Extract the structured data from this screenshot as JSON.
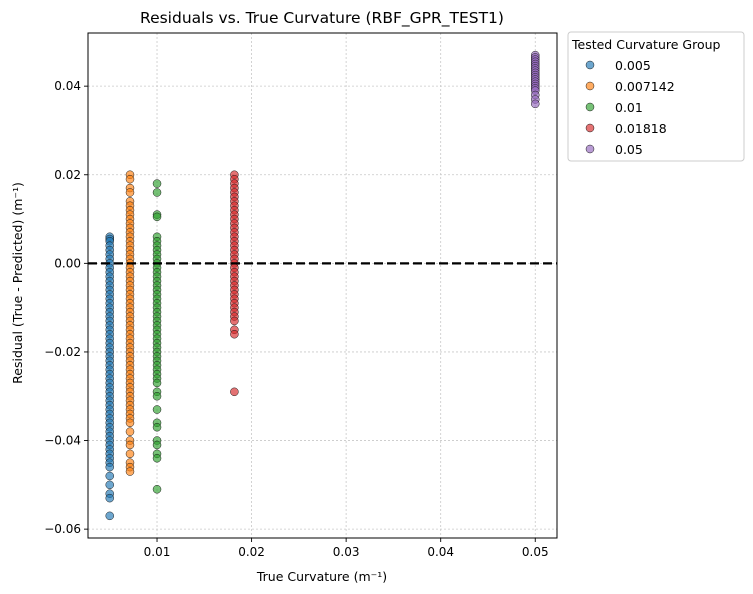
{
  "chart_data": {
    "type": "scatter",
    "title": "Residuals vs. True Curvature (RBF_GPR_TEST1)",
    "xlabel": "True Curvature (m⁻¹)",
    "ylabel": "Residual (True - Predicted) (m⁻¹)",
    "xlim": [
      0.0027,
      0.0523
    ],
    "ylim": [
      -0.062,
      0.052
    ],
    "x_ticks": [
      0.01,
      0.02,
      0.03,
      0.04,
      0.05
    ],
    "x_tick_labels": [
      "0.01",
      "0.02",
      "0.03",
      "0.04",
      "0.05"
    ],
    "y_ticks": [
      -0.06,
      -0.04,
      -0.02,
      0.0,
      0.02,
      0.04
    ],
    "y_tick_labels": [
      "−0.06",
      "−0.04",
      "−0.02",
      "0.00",
      "0.02",
      "0.04"
    ],
    "grid": true,
    "reference_line": {
      "y": 0.0,
      "style": "dashed",
      "color": "#000000"
    },
    "legend": {
      "title": "Tested Curvature Group",
      "placement": "outside-top-right",
      "entries": [
        "0.005",
        "0.007142",
        "0.01",
        "0.01818",
        "0.05"
      ]
    },
    "series": [
      {
        "name": "0.005",
        "color": "#1f77b4",
        "x": 0.005,
        "y": [
          0.006,
          0.0055,
          0.005,
          0.004,
          0.003,
          0.002,
          0.001,
          0.0,
          -0.001,
          -0.002,
          -0.003,
          -0.004,
          -0.005,
          -0.006,
          -0.007,
          -0.008,
          -0.009,
          -0.01,
          -0.011,
          -0.012,
          -0.013,
          -0.014,
          -0.015,
          -0.016,
          -0.017,
          -0.018,
          -0.019,
          -0.02,
          -0.021,
          -0.022,
          -0.023,
          -0.024,
          -0.025,
          -0.026,
          -0.027,
          -0.028,
          -0.029,
          -0.03,
          -0.031,
          -0.032,
          -0.033,
          -0.034,
          -0.035,
          -0.036,
          -0.037,
          -0.038,
          -0.039,
          -0.04,
          -0.041,
          -0.042,
          -0.043,
          -0.044,
          -0.045,
          -0.046,
          -0.048,
          -0.05,
          -0.052,
          -0.053,
          -0.057
        ]
      },
      {
        "name": "0.007142",
        "color": "#ff7f0e",
        "x": 0.007142,
        "y": [
          0.02,
          0.019,
          0.017,
          0.016,
          0.014,
          0.013,
          0.012,
          0.011,
          0.01,
          0.009,
          0.008,
          0.007,
          0.006,
          0.005,
          0.004,
          0.003,
          0.002,
          0.001,
          0.0,
          -0.001,
          -0.002,
          -0.003,
          -0.004,
          -0.005,
          -0.006,
          -0.007,
          -0.008,
          -0.009,
          -0.01,
          -0.011,
          -0.012,
          -0.013,
          -0.014,
          -0.015,
          -0.016,
          -0.017,
          -0.018,
          -0.019,
          -0.02,
          -0.021,
          -0.022,
          -0.023,
          -0.024,
          -0.025,
          -0.026,
          -0.027,
          -0.028,
          -0.029,
          -0.03,
          -0.031,
          -0.032,
          -0.033,
          -0.034,
          -0.035,
          -0.036,
          -0.038,
          -0.04,
          -0.041,
          -0.043,
          -0.045,
          -0.046,
          -0.047
        ]
      },
      {
        "name": "0.01",
        "color": "#2ca02c",
        "x": 0.01,
        "y": [
          0.018,
          0.016,
          0.011,
          0.0105,
          0.006,
          0.005,
          0.004,
          0.003,
          0.002,
          0.001,
          0.0,
          -0.001,
          -0.002,
          -0.003,
          -0.004,
          -0.005,
          -0.006,
          -0.007,
          -0.008,
          -0.009,
          -0.01,
          -0.011,
          -0.012,
          -0.013,
          -0.014,
          -0.015,
          -0.016,
          -0.017,
          -0.018,
          -0.019,
          -0.02,
          -0.021,
          -0.022,
          -0.023,
          -0.024,
          -0.025,
          -0.026,
          -0.027,
          -0.029,
          -0.03,
          -0.033,
          -0.036,
          -0.037,
          -0.04,
          -0.041,
          -0.043,
          -0.044,
          -0.051
        ]
      },
      {
        "name": "0.01818",
        "color": "#d62728",
        "x": 0.01818,
        "y": [
          0.02,
          0.019,
          0.018,
          0.017,
          0.016,
          0.015,
          0.014,
          0.013,
          0.012,
          0.011,
          0.01,
          0.009,
          0.008,
          0.007,
          0.006,
          0.005,
          0.004,
          0.003,
          0.002,
          0.001,
          0.0,
          -0.001,
          -0.002,
          -0.003,
          -0.004,
          -0.005,
          -0.006,
          -0.007,
          -0.008,
          -0.009,
          -0.01,
          -0.011,
          -0.012,
          -0.013,
          -0.015,
          -0.016,
          -0.029
        ]
      },
      {
        "name": "0.05",
        "color": "#9467bd",
        "x": 0.05,
        "y": [
          0.047,
          0.0465,
          0.046,
          0.0455,
          0.045,
          0.0445,
          0.044,
          0.0435,
          0.043,
          0.0425,
          0.042,
          0.0415,
          0.041,
          0.0405,
          0.04,
          0.0395,
          0.039,
          0.038,
          0.037,
          0.036
        ]
      }
    ]
  }
}
